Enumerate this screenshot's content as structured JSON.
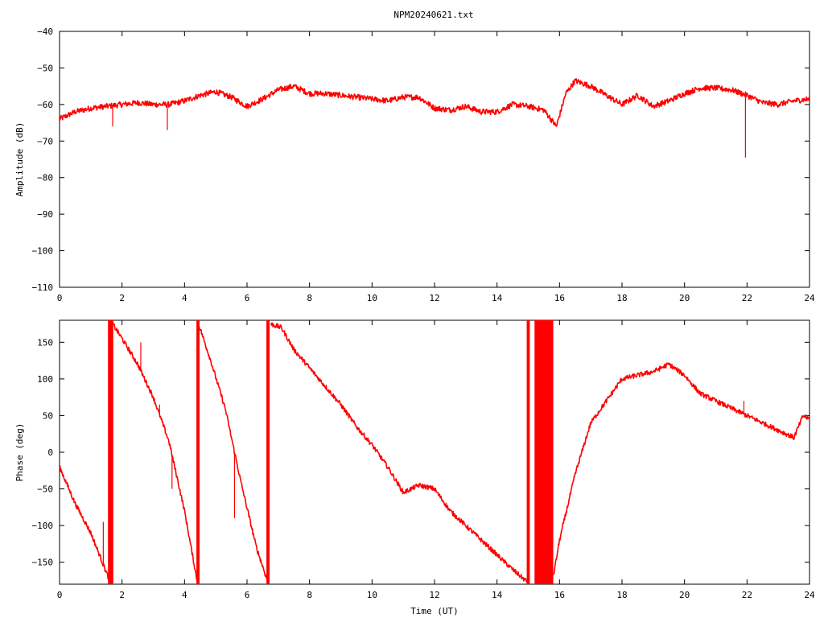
{
  "title": "NPM20240621.txt",
  "chart_data": [
    {
      "type": "line",
      "ylabel": "Amplitude (dB)",
      "xlabel": "",
      "xlim": [
        0,
        24
      ],
      "ylim": [
        -110,
        -40
      ],
      "xticks": [
        0,
        2,
        4,
        6,
        8,
        10,
        12,
        14,
        16,
        18,
        20,
        22,
        24
      ],
      "yticks": [
        -110,
        -100,
        -90,
        -80,
        -70,
        -60,
        -50,
        -40
      ],
      "grid": false,
      "color": "#ff0000",
      "series": [
        {
          "x": [
            0,
            0.5,
            1,
            1.5,
            2,
            2.5,
            3,
            3.5,
            4,
            4.5,
            5,
            5.5,
            6,
            6.5,
            7,
            7.5,
            8,
            8.5,
            9,
            9.5,
            10,
            10.5,
            11,
            11.5,
            12,
            12.5,
            13,
            13.5,
            14,
            14.5,
            15,
            15.5,
            15.9,
            16.2,
            16.5,
            17,
            17.5,
            18,
            18.5,
            19,
            19.5,
            20,
            20.5,
            21,
            21.5,
            22,
            22.5,
            23,
            23.5,
            24
          ],
          "y": [
            -64,
            -62,
            -61,
            -60.5,
            -60,
            -59.5,
            -60,
            -60,
            -59,
            -57.5,
            -56.5,
            -58,
            -60.5,
            -58.5,
            -56,
            -55,
            -57,
            -57,
            -57.5,
            -58,
            -58.5,
            -59,
            -58,
            -58,
            -61,
            -61.5,
            -60.5,
            -62,
            -62,
            -60,
            -60.5,
            -61.5,
            -66,
            -57,
            -53.5,
            -55,
            -57.5,
            -60,
            -57.5,
            -60.5,
            -59,
            -57,
            -55.5,
            -55.5,
            -56,
            -57.5,
            -59.5,
            -60,
            -59,
            -58.5
          ]
        }
      ],
      "spikes": [
        {
          "x": 1.7,
          "y": -66
        },
        {
          "x": 3.45,
          "y": -67
        },
        {
          "x": 21.95,
          "y": -74.5
        }
      ]
    },
    {
      "type": "line",
      "ylabel": "Phase (deg)",
      "xlabel": "Time (UT)",
      "xlim": [
        0,
        24
      ],
      "ylim": [
        -180,
        180
      ],
      "xticks": [
        0,
        2,
        4,
        6,
        8,
        10,
        12,
        14,
        16,
        18,
        20,
        22,
        24
      ],
      "yticks": [
        -150,
        -100,
        -50,
        0,
        50,
        100,
        150
      ],
      "grid": false,
      "color": "#ff0000",
      "series": [
        {
          "x": [
            0,
            0.5,
            1.0,
            1.6
          ],
          "y": [
            -20,
            -70,
            -110,
            -175
          ]
        },
        {
          "x": [
            1.7,
            2.0,
            2.5,
            3.0,
            3.5,
            4.0,
            4.4
          ],
          "y": [
            175,
            155,
            120,
            75,
            15,
            -80,
            -175
          ]
        },
        {
          "x": [
            4.45,
            4.8,
            5.3,
            5.8,
            6.3,
            6.65
          ],
          "y": [
            175,
            130,
            60,
            -40,
            -130,
            -175
          ]
        },
        {
          "x": [
            6.75,
            7.1,
            7.5,
            8.0,
            8.5,
            9.0,
            9.5,
            10.0,
            10.5,
            11.0,
            11.5,
            12.0,
            12.5,
            13.0,
            13.5,
            14.0,
            14.5,
            15.0
          ],
          "y": [
            175,
            170,
            140,
            115,
            90,
            65,
            35,
            10,
            -20,
            -55,
            -45,
            -50,
            -80,
            -100,
            -120,
            -140,
            -160,
            -178
          ]
        },
        {
          "x": [
            15.8,
            16.0,
            16.5,
            17.0,
            17.5,
            18.0,
            18.5,
            19.0,
            19.5,
            20.0,
            20.5,
            21.0,
            21.5,
            22.0,
            22.5,
            23.0,
            23.5,
            23.8,
            24.0
          ],
          "y": [
            -170,
            -120,
            -30,
            40,
            70,
            100,
            105,
            110,
            120,
            105,
            80,
            70,
            60,
            50,
            40,
            30,
            20,
            50,
            45
          ]
        }
      ],
      "wraps": [
        {
          "x0": 1.55,
          "x1": 1.72
        },
        {
          "x0": 4.38,
          "x1": 4.48
        },
        {
          "x0": 6.62,
          "x1": 6.72
        },
        {
          "x0": 14.95,
          "x1": 15.05
        },
        {
          "x0": 15.2,
          "x1": 15.8
        }
      ],
      "spikes": [
        {
          "x": 1.4,
          "y": -95
        },
        {
          "x": 2.6,
          "y": 150
        },
        {
          "x": 3.2,
          "y": 65
        },
        {
          "x": 3.6,
          "y": -50
        },
        {
          "x": 5.6,
          "y": -90
        },
        {
          "x": 21.9,
          "y": 70
        }
      ]
    }
  ]
}
